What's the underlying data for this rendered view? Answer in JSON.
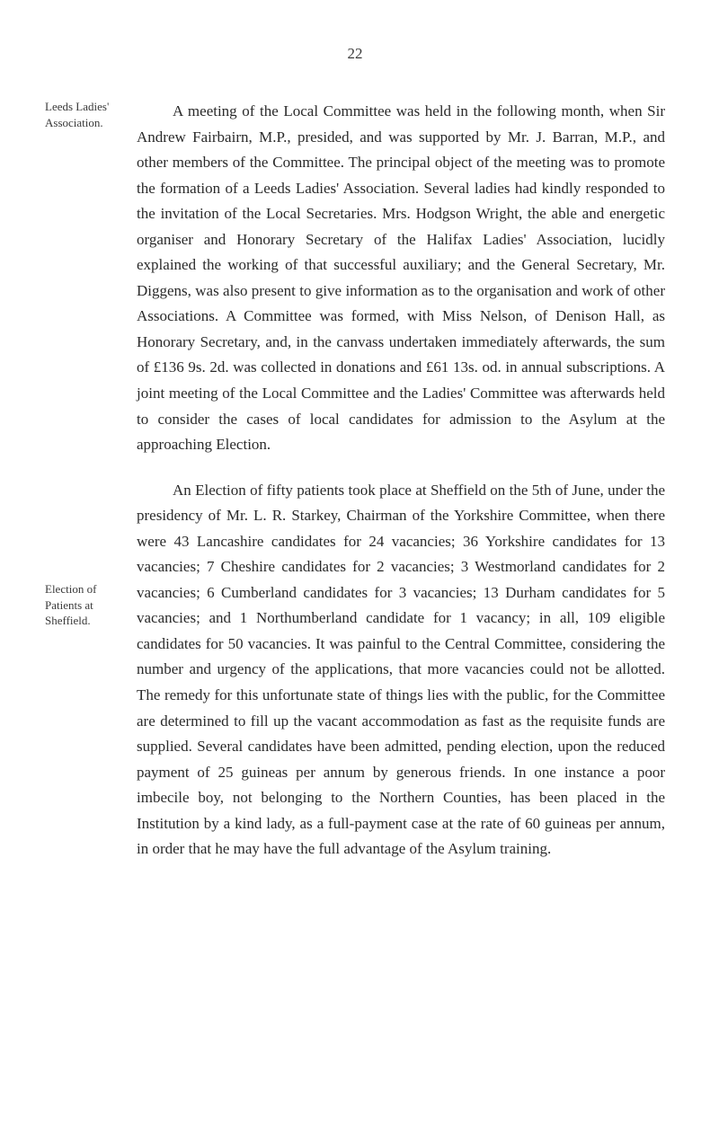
{
  "page_number": "22",
  "margin_notes": {
    "note1_line1": "Leeds Ladies'",
    "note1_line2": "Association.",
    "note2_line1": "Election of",
    "note2_line2": "Patients at",
    "note2_line3": "Sheffield."
  },
  "paragraphs": {
    "para1": "A meeting of the Local Committee was held in the following month, when Sir Andrew Fairbairn, M.P., presided, and was supported by Mr. J. Barran, M.P., and other members of the Committee. The principal object of the meeting was to promote the formation of a Leeds Ladies' Association. Several ladies had kindly responded to the invitation of the Local Secretaries. Mrs. Hodgson Wright, the able and energetic organiser and Honorary Secretary of the Halifax Ladies' Association, lucidly explained the working of that successful auxiliary; and the General Secretary, Mr. Diggens, was also present to give information as to the organisation and work of other Associations. A Committee was formed, with Miss Nelson, of Denison Hall, as Honorary Secretary, and, in the canvass undertaken immediately afterwards, the sum of £136 9s. 2d. was collected in donations and £61 13s. od. in annual subscriptions. A joint meeting of the Local Committee and the Ladies' Committee was afterwards held to consider the cases of local candidates for admission to the Asylum at the approaching Election.",
    "para2": "An Election of fifty patients took place at Sheffield on the 5th of June, under the presidency of Mr. L. R. Starkey, Chairman of the Yorkshire Committee, when there were 43 Lancashire candidates for 24 vacancies; 36 Yorkshire candidates for 13 vacancies; 7 Cheshire candidates for 2 vacancies; 3 West­morland candidates for 2 vacancies; 6 Cumberland candidates for 3 vacancies; 13 Durham candidates for 5 vacancies; and 1 Northumberland candidate for 1 vacancy; in all, 109 eligible candidates for 50 vacancies. It was painful to the Central Committee, considering the number and urgency of the applica­tions, that more vacancies could not be allotted. The remedy for this unfortunate state of things lies with the public, for the Committee are determined to fill up the vacant accommodation as fast as the requisite funds are supplied. Several candidates have been admitted, pending election, upon the reduced payment of 25 guineas per annum by generous friends. In one instance a poor imbecile boy, not belonging to the Northern Counties, has been placed in the Institution by a kind lady, as a full-payment case at the rate of 60 guineas per annum, in order that he may have the full advantage of the Asylum training."
  },
  "styling": {
    "background_color": "#ffffff",
    "text_color": "#2a2a2a",
    "margin_text_color": "#3a3a3a",
    "body_font_size": 17,
    "margin_font_size": 13,
    "line_height": 1.68
  }
}
